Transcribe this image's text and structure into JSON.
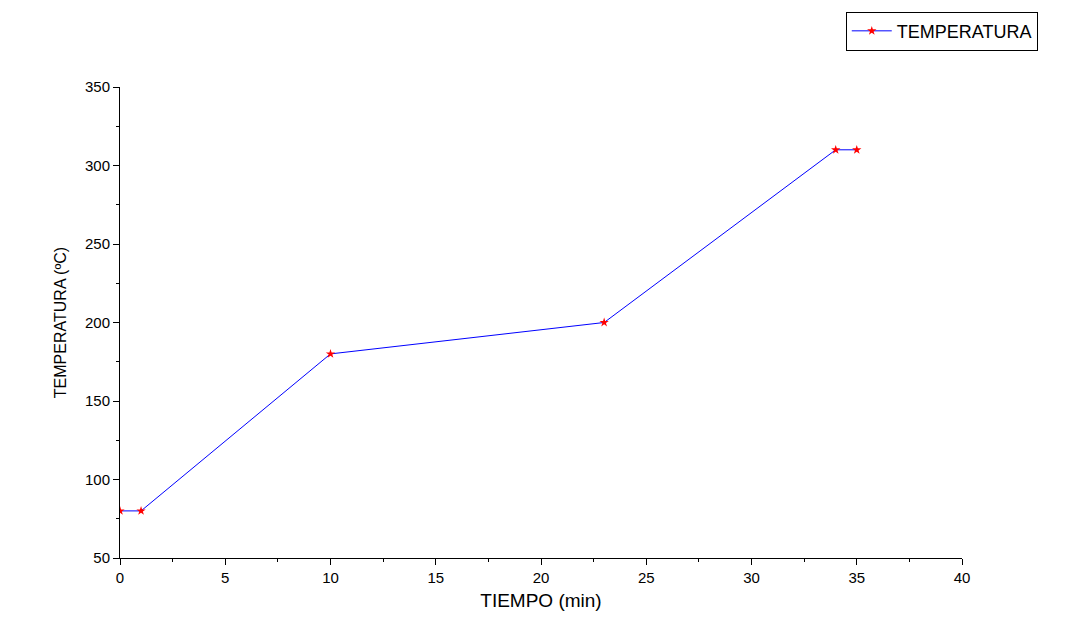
{
  "chart_data": {
    "type": "line",
    "x_label": "TIEMPO (min)",
    "y_label": "TEMPERATURA (ºC)",
    "series": [
      {
        "name": "TEMPERATURA",
        "color": "#0000ff",
        "marker": "star",
        "x": [
          0,
          1,
          10,
          23,
          34,
          35
        ],
        "values": [
          80,
          80,
          180,
          200,
          310,
          310
        ]
      }
    ],
    "xlim": [
      0,
      40
    ],
    "xticks": [
      0,
      5,
      10,
      15,
      20,
      25,
      30,
      35,
      40
    ],
    "ylim": [
      50,
      350
    ],
    "yticks": [
      50,
      100,
      150,
      200,
      250,
      300,
      350
    ],
    "grid": false,
    "legend": "upper right"
  }
}
